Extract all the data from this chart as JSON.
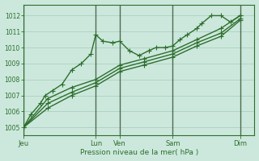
{
  "background_color": "#cce8dc",
  "grid_color": "#aacfbf",
  "line_color": "#2d6e2d",
  "text_color": "#2d6e2d",
  "vline_color": "#3a5a3a",
  "xlabel": "Pression niveau de la mer( hPa )",
  "ylim": [
    1004.5,
    1012.7
  ],
  "yticks": [
    1005,
    1006,
    1007,
    1008,
    1009,
    1010,
    1011,
    1012
  ],
  "xlim": [
    0,
    96
  ],
  "xtick_labels": [
    "Jeu",
    "Lun",
    "Ven",
    "Sam",
    "Dim"
  ],
  "xtick_positions": [
    0,
    30,
    40,
    62,
    90
  ],
  "vline_positions": [
    0,
    30,
    40,
    62,
    90
  ],
  "series1_x": [
    0,
    3,
    7,
    9,
    12,
    16,
    20,
    24,
    28,
    30,
    33,
    37,
    40,
    44,
    48,
    52,
    55,
    59,
    62,
    65,
    68,
    72,
    74,
    78,
    82,
    86,
    90
  ],
  "series1_y": [
    1005.0,
    1005.8,
    1006.5,
    1007.0,
    1007.3,
    1007.7,
    1008.6,
    1009.0,
    1009.6,
    1010.8,
    1010.4,
    1010.3,
    1010.4,
    1009.8,
    1009.5,
    1009.8,
    1010.0,
    1010.0,
    1010.1,
    1010.5,
    1010.8,
    1011.2,
    1011.5,
    1012.0,
    1012.0,
    1011.6,
    1012.0
  ],
  "series2_x": [
    0,
    10,
    20,
    30,
    40,
    50,
    62,
    72,
    82,
    90
  ],
  "series2_y": [
    1005.0,
    1006.8,
    1007.5,
    1008.0,
    1008.9,
    1009.3,
    1009.8,
    1010.5,
    1011.2,
    1012.0
  ],
  "series3_x": [
    0,
    10,
    20,
    30,
    40,
    50,
    62,
    72,
    82,
    90
  ],
  "series3_y": [
    1005.0,
    1006.5,
    1007.2,
    1007.8,
    1008.7,
    1009.1,
    1009.6,
    1010.3,
    1010.9,
    1011.8
  ],
  "series4_x": [
    0,
    10,
    20,
    30,
    40,
    50,
    62,
    72,
    82,
    90
  ],
  "series4_y": [
    1005.0,
    1006.2,
    1007.0,
    1007.6,
    1008.5,
    1008.9,
    1009.4,
    1010.1,
    1010.7,
    1011.7
  ],
  "marker": "+",
  "markersize": 4,
  "linewidth": 1.0
}
